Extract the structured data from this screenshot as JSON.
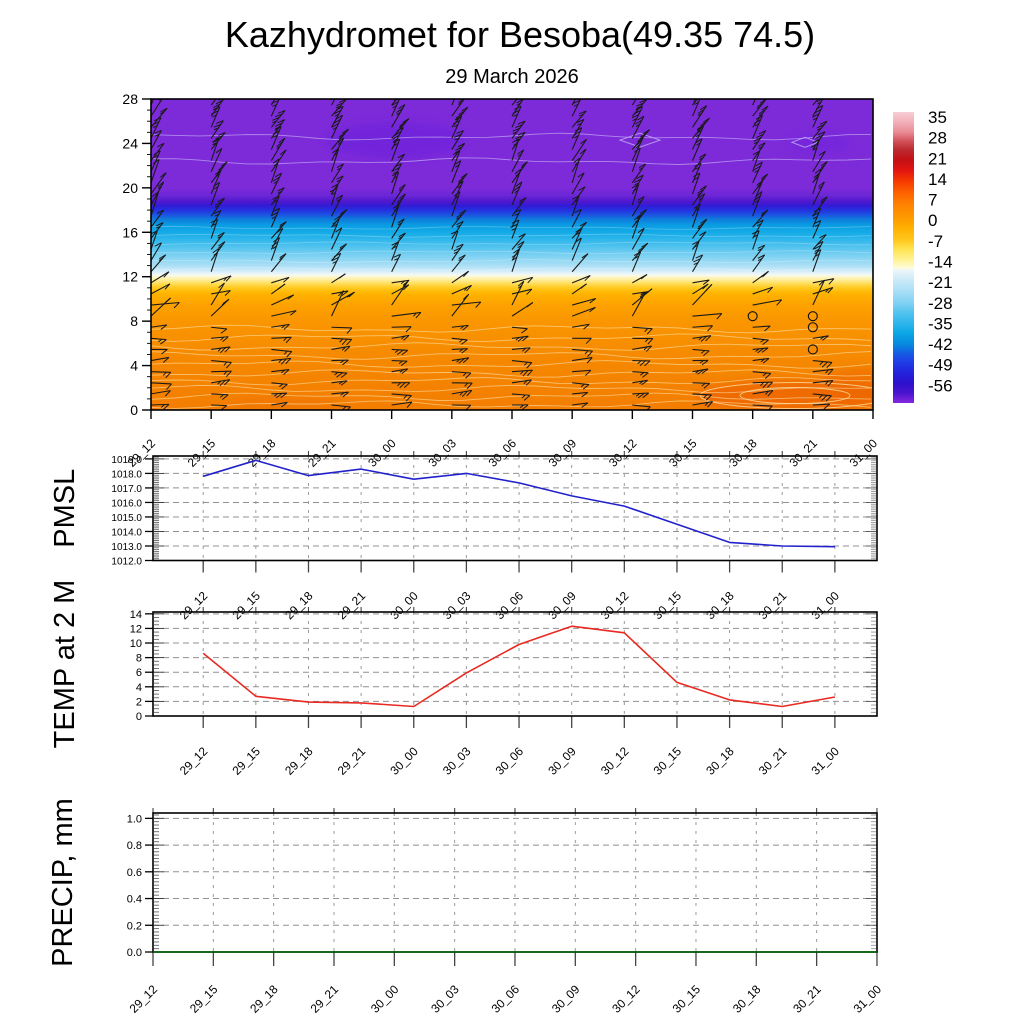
{
  "title": "Kazhydromet for Besoba(49.35 74.5)",
  "subtitle": "29 March 2026",
  "time_labels": [
    "29_12",
    "29_15",
    "29_18",
    "29_21",
    "30_00",
    "30_03",
    "30_06",
    "30_09",
    "30_12",
    "30_15",
    "30_18",
    "30_21",
    "31_00"
  ],
  "colors": {
    "pmsl_line": "#2222CC",
    "temp_line": "#E82A22",
    "precip_line": "#006600",
    "grid": "#909090",
    "axis": "#000000",
    "barb": "#1a1a1a"
  },
  "chart_data": [
    {
      "type": "heatmap",
      "name": "time-height-cross-section",
      "x": [
        "29_12",
        "29_15",
        "29_18",
        "29_21",
        "30_00",
        "30_03",
        "30_06",
        "30_09",
        "30_12",
        "30_15",
        "30_18",
        "30_21",
        "31_00"
      ],
      "ylabel": "",
      "y_ticks": [
        0,
        4,
        8,
        12,
        16,
        20,
        24,
        28
      ],
      "y_range": [
        0,
        28
      ],
      "overlay": "wind barbs at every level and time; thin white temperature contours",
      "approx_temp_by_height": [
        {
          "h": 0,
          "t": 10
        },
        {
          "h": 4,
          "t": 9
        },
        {
          "h": 8,
          "t": 7
        },
        {
          "h": 10,
          "t": 3
        },
        {
          "h": 11.5,
          "t": 0
        },
        {
          "h": 12,
          "t": -12
        },
        {
          "h": 13,
          "t": -18
        },
        {
          "h": 14,
          "t": -23
        },
        {
          "h": 15,
          "t": -28
        },
        {
          "h": 16,
          "t": -33
        },
        {
          "h": 17,
          "t": -40
        },
        {
          "h": 18,
          "t": -50
        },
        {
          "h": 18.7,
          "t": -57
        },
        {
          "h": 20,
          "t": -60
        },
        {
          "h": 28,
          "t": -60
        }
      ],
      "colorbar_ticks": [
        35,
        28,
        21,
        14,
        7,
        0,
        -7,
        -14,
        -21,
        -28,
        -35,
        -42,
        -49,
        -56
      ],
      "colorbar_gradient": [
        [
          0,
          "#F8CDD4"
        ],
        [
          0.03,
          "#F4B4BE"
        ],
        [
          0.07,
          "#E88A94"
        ],
        [
          0.1,
          "#D25158"
        ],
        [
          0.13,
          "#BC2A30"
        ],
        [
          0.165,
          "#C41014"
        ],
        [
          0.2,
          "#E21410"
        ],
        [
          0.24,
          "#F73C00"
        ],
        [
          0.28,
          "#FD6400"
        ],
        [
          0.32,
          "#FE8400"
        ],
        [
          0.36,
          "#FE9800"
        ],
        [
          0.395,
          "#FFAE00"
        ],
        [
          0.44,
          "#FFC81E"
        ],
        [
          0.47,
          "#FFE24E"
        ],
        [
          0.51,
          "#FFF398"
        ],
        [
          0.535,
          "#FFFBD8"
        ],
        [
          0.545,
          "#EBF5FB"
        ],
        [
          0.58,
          "#C9E9F8"
        ],
        [
          0.62,
          "#A4DDF5"
        ],
        [
          0.66,
          "#7CD0F2"
        ],
        [
          0.69,
          "#52C3EF"
        ],
        [
          0.73,
          "#2AB4EB"
        ],
        [
          0.76,
          "#0AA6E6"
        ],
        [
          0.8,
          "#0787DE"
        ],
        [
          0.83,
          "#155CE3"
        ],
        [
          0.86,
          "#1F3BE6"
        ],
        [
          0.9,
          "#2420DA"
        ],
        [
          0.93,
          "#2C11CE"
        ],
        [
          0.965,
          "#4A14CF"
        ],
        [
          1,
          "#8428DC"
        ]
      ],
      "fill_gradient": [
        [
          0,
          "#7D2BD9"
        ],
        [
          0.286,
          "#7D2BD9"
        ],
        [
          0.311,
          "#6B26D6"
        ],
        [
          0.329,
          "#5018CE"
        ],
        [
          0.343,
          "#321BD4"
        ],
        [
          0.357,
          "#2430E0"
        ],
        [
          0.371,
          "#1C50E2"
        ],
        [
          0.386,
          "#0F7ADB"
        ],
        [
          0.404,
          "#0A9BE2"
        ],
        [
          0.429,
          "#14ABE7"
        ],
        [
          0.464,
          "#3FBDED"
        ],
        [
          0.5,
          "#77CFF1"
        ],
        [
          0.536,
          "#ABDFF5"
        ],
        [
          0.554,
          "#D3EDF9"
        ],
        [
          0.5625,
          "#ECF6FB"
        ],
        [
          0.568,
          "#FBF9E4"
        ],
        [
          0.579,
          "#FEF0A8"
        ],
        [
          0.593,
          "#FFDF5C"
        ],
        [
          0.607,
          "#FFC91F"
        ],
        [
          0.625,
          "#FFB400"
        ],
        [
          0.661,
          "#FDA200"
        ],
        [
          0.714,
          "#FA9600"
        ],
        [
          0.821,
          "#F68A00"
        ],
        [
          0.929,
          "#F48200"
        ],
        [
          1,
          "#F37D00"
        ]
      ],
      "contours_orange_h": [
        0.5,
        1.2,
        1.9,
        2.6,
        3.3,
        4.1,
        4.9,
        5.7,
        6.5,
        7.3
      ],
      "contours_blue_h": [
        12.7,
        13.4,
        14.2,
        15.0,
        15.7,
        16.4
      ],
      "contours_purple_h": [
        22.4,
        24.6
      ],
      "calm_circles": [
        [
          10,
          8.45
        ],
        [
          11,
          8.45
        ],
        [
          11,
          7.45
        ],
        [
          11,
          5.45
        ]
      ],
      "barb_bands": [
        {
          "hmax": 8,
          "angle": 2,
          "spread": 8,
          "len": 18,
          "ticks": 2
        },
        {
          "hmax": 10,
          "angle": 35,
          "spread": 30,
          "len": 27,
          "ticks": 1
        },
        {
          "hmax": 12,
          "angle": 22,
          "spread": 14,
          "len": 19,
          "ticks": 1
        },
        {
          "hmax": 17,
          "angle": 60,
          "spread": 12,
          "len": 22,
          "ticks": 2
        },
        {
          "hmax": 23,
          "angle": 63,
          "spread": 10,
          "len": 24,
          "ticks": 2
        },
        {
          "hmax": 29,
          "angle": 58,
          "spread": 9,
          "len": 24,
          "ticks": 3
        }
      ]
    },
    {
      "type": "line",
      "name": "pmsl",
      "title": "PMSL",
      "x": [
        "29_12",
        "29_15",
        "29_18",
        "29_21",
        "30_00",
        "30_03",
        "30_06",
        "30_09",
        "30_12",
        "30_15",
        "30_18",
        "30_21",
        "31_00"
      ],
      "y_ticks": [
        "1012.0",
        "1013.0",
        "1014.0",
        "1015.0",
        "1016.0",
        "1017.0",
        "1018.0",
        "1019.0"
      ],
      "ylim": [
        1012.0,
        1019.2
      ],
      "values": [
        1017.8,
        1018.9,
        1017.85,
        1018.3,
        1017.6,
        1018.0,
        1017.35,
        1016.45,
        1015.75,
        1014.5,
        1013.25,
        1013.0,
        1012.95
      ],
      "line_color": "#2222CC",
      "grid": "dashed"
    },
    {
      "type": "line",
      "name": "temp-2m",
      "title": "TEMP at 2 M",
      "x": [
        "29_12",
        "29_15",
        "29_18",
        "29_21",
        "30_00",
        "30_03",
        "30_06",
        "30_09",
        "30_12",
        "30_15",
        "30_18",
        "30_21",
        "31_00"
      ],
      "y_ticks": [
        "0",
        "2",
        "4",
        "6",
        "8",
        "10",
        "12",
        "14"
      ],
      "ylim": [
        0,
        14.25
      ],
      "values": [
        8.6,
        2.7,
        1.9,
        1.8,
        1.3,
        5.9,
        9.8,
        12.3,
        11.4,
        4.6,
        2.2,
        1.3,
        2.6
      ],
      "line_color": "#E82A22",
      "grid": "dashed"
    },
    {
      "type": "line",
      "name": "precip",
      "title": "PRECIP, mm",
      "x": [
        "29_12",
        "29_15",
        "29_18",
        "29_21",
        "30_00",
        "30_03",
        "30_06",
        "30_09",
        "30_12",
        "30_15",
        "30_18",
        "30_21",
        "31_00"
      ],
      "y_ticks": [
        "0.0",
        "0.2",
        "0.4",
        "0.6",
        "0.8",
        "1.0"
      ],
      "ylim": [
        0,
        1.04
      ],
      "values": [
        0,
        0,
        0,
        0,
        0,
        0,
        0,
        0,
        0,
        0,
        0,
        0,
        0
      ],
      "line_color": "#006600",
      "grid": "dashed"
    }
  ]
}
